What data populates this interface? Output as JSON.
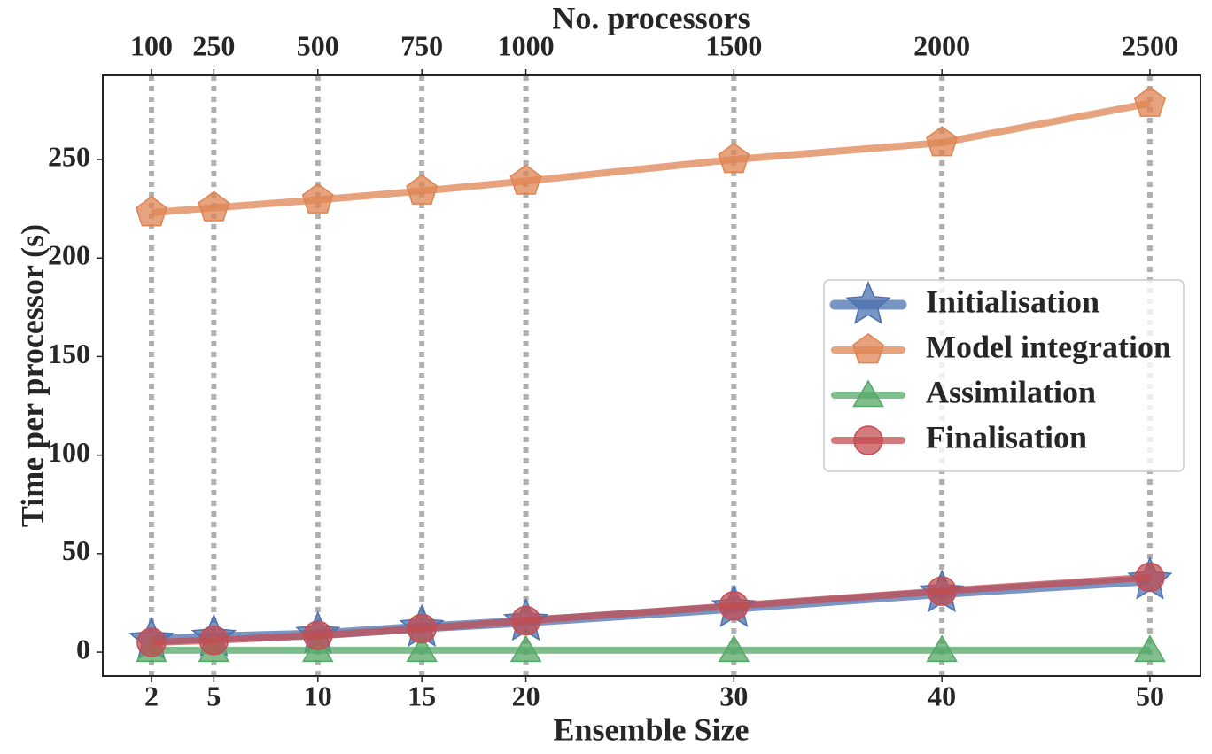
{
  "chart_data": {
    "type": "line",
    "xlabel": "Ensemble Size",
    "ylabel": "Time per processor (s)",
    "x2label": "No. processors",
    "x": [
      2,
      5,
      10,
      15,
      20,
      30,
      40,
      50
    ],
    "xlim": [
      -0.34,
      52.43
    ],
    "xticks": [
      2,
      5,
      10,
      15,
      20,
      30,
      40,
      50
    ],
    "x2lim": [
      -17,
      2621.5
    ],
    "x2ticks": [
      100,
      250,
      500,
      750,
      1000,
      1500,
      2000,
      2500
    ],
    "ylim": [
      -12.1,
      292.7
    ],
    "yticks": [
      0,
      50,
      100,
      150,
      200,
      250
    ],
    "grid": true,
    "legend": "center right",
    "series": [
      {
        "name": "Initialisation",
        "color": "#4c72b0",
        "marker": "star",
        "values": [
          6,
          7.5,
          9,
          12.5,
          15.5,
          22.5,
          30,
          36.5
        ]
      },
      {
        "name": "Model integration",
        "color": "#dd8452",
        "marker": "pentagon",
        "values": [
          223,
          225.5,
          229.5,
          234,
          239,
          250,
          258.5,
          278.5
        ]
      },
      {
        "name": "Assimilation",
        "color": "#55a868",
        "marker": "triangle",
        "values": [
          1,
          1,
          1,
          1,
          1,
          1,
          1,
          1
        ]
      },
      {
        "name": "Finalisation",
        "color": "#c44e52",
        "marker": "circle",
        "values": [
          5,
          6,
          8.5,
          12,
          16,
          23.5,
          31,
          38
        ]
      }
    ]
  }
}
